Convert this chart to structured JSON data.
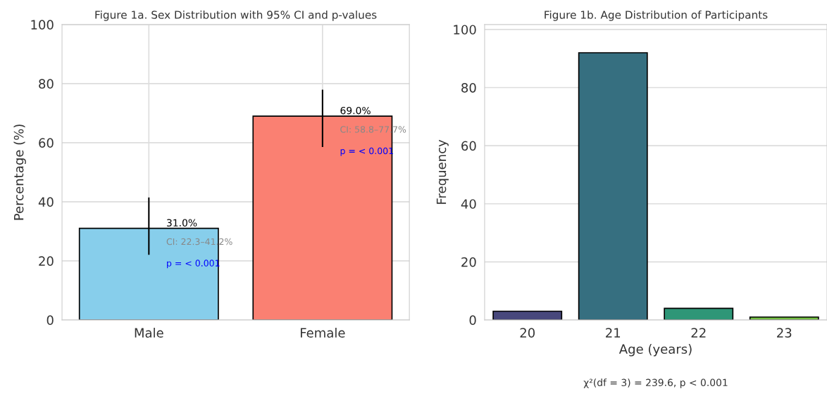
{
  "chart_data": [
    {
      "type": "bar",
      "title": "Figure 1a. Sex Distribution with 95% CI and p-values",
      "ylabel": "Percentage (%)",
      "categories": [
        "Male",
        "Female"
      ],
      "values": [
        31.0,
        69.0
      ],
      "colors": [
        "#87ceeb",
        "#fa8072"
      ],
      "errors": [
        [
          22.3,
          41.2
        ],
        [
          58.8,
          77.7
        ]
      ],
      "value_labels": [
        "31.0%",
        "69.0%"
      ],
      "annotations": [
        "CI: 22.3–41.2%",
        "p = < 0.001",
        "CI: 58.8–77.7%",
        "p = < 0.001"
      ],
      "ylim": [
        0,
        100
      ],
      "yticks": [
        0,
        20,
        40,
        60,
        80,
        100
      ],
      "grid": true
    },
    {
      "type": "bar",
      "title": "Figure 1b. Age Distribution of Participants",
      "xlabel": "Age (years)",
      "ylabel": "Frequency",
      "categories": [
        "20",
        "21",
        "22",
        "23"
      ],
      "values": [
        3,
        92,
        4,
        1
      ],
      "colors": [
        "#48487c",
        "#366f80",
        "#2e9677",
        "#74c043"
      ],
      "annotations": [
        "χ²(df = 3) = 239.6, p < 0.001"
      ],
      "ylim": [
        0,
        101.7
      ],
      "yticks": [
        0,
        20,
        40,
        60,
        80,
        100
      ],
      "grid": "y"
    }
  ]
}
